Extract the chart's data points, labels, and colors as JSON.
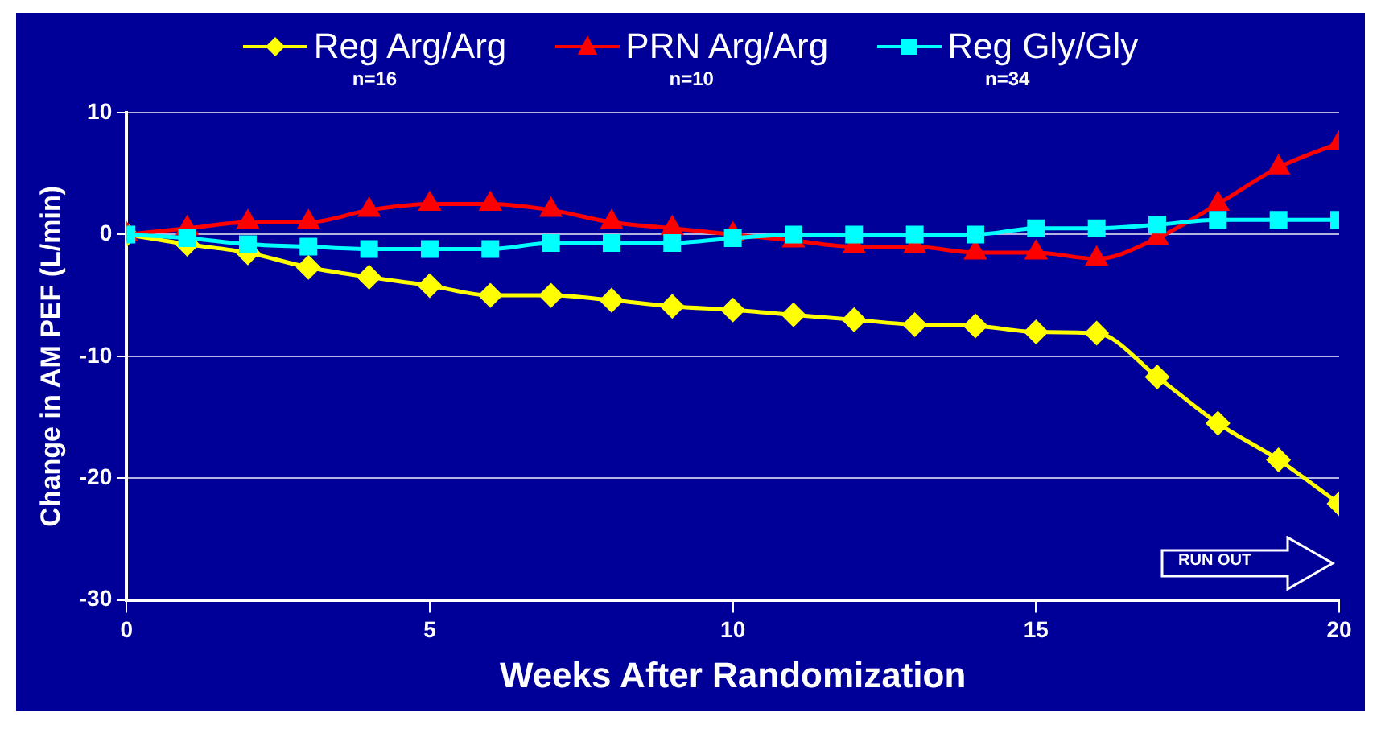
{
  "chart_data": {
    "type": "line",
    "xlabel": "Weeks After Randomization",
    "ylabel": "Change in AM PEF (L/min)",
    "x": [
      0,
      1,
      2,
      3,
      4,
      5,
      6,
      7,
      8,
      9,
      10,
      11,
      12,
      13,
      14,
      15,
      16,
      17,
      18,
      19,
      20
    ],
    "series": [
      {
        "name": "Reg Arg/Arg",
        "color": "#ffff00",
        "marker": "diamond",
        "values": [
          0,
          -0.8,
          -1.5,
          -2.7,
          -3.5,
          -4.2,
          -5,
          -5,
          -5.4,
          -5.9,
          -6.2,
          -6.6,
          -7,
          -7.4,
          -7.5,
          -8,
          -8.1,
          -11.7,
          -15.5,
          -18.5,
          -22.1
        ]
      },
      {
        "name": "PRN Arg/Arg",
        "color": "#ff0000",
        "marker": "triangle",
        "values": [
          0,
          0.5,
          1,
          1,
          2,
          2.5,
          2.5,
          2,
          1,
          0.5,
          0,
          -0.5,
          -1,
          -1,
          -1.5,
          -1.5,
          -2,
          -0.3,
          2.5,
          5.5,
          7.5
        ]
      },
      {
        "name": "Reg Gly/Gly",
        "color": "#00ffff",
        "marker": "square",
        "values": [
          0,
          -0.3,
          -0.8,
          -1,
          -1.2,
          -1.2,
          -1.2,
          -0.7,
          -0.7,
          -0.7,
          -0.3,
          0,
          0,
          0,
          0,
          0.5,
          0.5,
          0.8,
          1.2,
          1.2,
          1.2
        ]
      }
    ],
    "annotations": [
      "n=16",
      "n=10",
      "n=34",
      "RUN OUT"
    ],
    "xlim": [
      0,
      20
    ],
    "xticks": [
      0,
      5,
      10,
      15,
      20
    ],
    "ylim": [
      -30,
      10
    ],
    "yticks": [
      -30,
      -20,
      -10,
      0,
      10
    ],
    "grid": "y",
    "legend": "top",
    "line_style": "solid"
  }
}
